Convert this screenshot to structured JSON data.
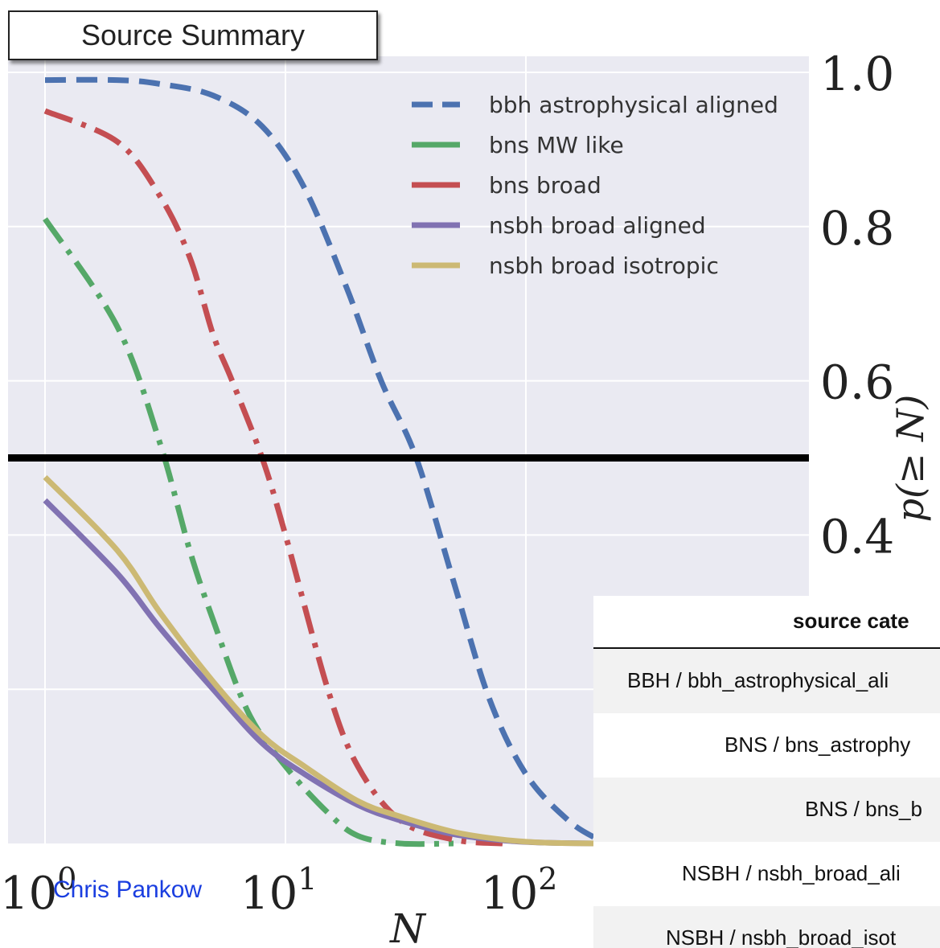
{
  "title": "Source Summary",
  "author": "Chris Pankow",
  "chart_data": {
    "type": "line",
    "xlabel": "N",
    "ylabel": "p(≥ N)",
    "xscale": "log",
    "xlim": [
      1,
      300
    ],
    "ylim": [
      0.0,
      1.0
    ],
    "x_tick_labels": [
      {
        "base": "10",
        "exp": "0",
        "value": 1
      },
      {
        "base": "10",
        "exp": "1",
        "value": 10
      },
      {
        "base": "10",
        "exp": "2",
        "value": 100
      }
    ],
    "y_tick_labels": [
      "1.0",
      "0.8",
      "0.6",
      "0.4"
    ],
    "y_tick_values": [
      1.0,
      0.8,
      0.6,
      0.4
    ],
    "grid": true,
    "legend_position": "top-right",
    "threshold_line": 0.5,
    "series": [
      {
        "name": "bbh astrophysical aligned",
        "color": "#4c72b0",
        "style": "dashed",
        "x": [
          1,
          2,
          3,
          5,
          8,
          12,
          18,
          25,
          35,
          50,
          70,
          100,
          150,
          200
        ],
        "y": [
          0.99,
          0.99,
          0.985,
          0.97,
          0.93,
          0.85,
          0.72,
          0.6,
          0.5,
          0.34,
          0.19,
          0.09,
          0.03,
          0.005
        ]
      },
      {
        "name": "bns MW like",
        "color": "#55a868",
        "style": "dashdot",
        "x": [
          1,
          2,
          3,
          4,
          5,
          7,
          10,
          15,
          20,
          30,
          50
        ],
        "y": [
          0.81,
          0.67,
          0.52,
          0.38,
          0.29,
          0.17,
          0.1,
          0.04,
          0.01,
          0.0,
          0.0
        ]
      },
      {
        "name": "bns broad",
        "color": "#c44e52",
        "style": "dashdot",
        "x": [
          1,
          2,
          3,
          4,
          5,
          6,
          8,
          10,
          15,
          20,
          30,
          50,
          80
        ],
        "y": [
          0.95,
          0.91,
          0.84,
          0.76,
          0.66,
          0.6,
          0.5,
          0.4,
          0.2,
          0.1,
          0.03,
          0.005,
          0.0
        ]
      },
      {
        "name": "nsbh broad aligned",
        "color": "#8172b2",
        "style": "solid",
        "x": [
          1,
          2,
          3,
          5,
          8,
          12,
          20,
          30,
          50,
          80,
          120,
          200
        ],
        "y": [
          0.445,
          0.35,
          0.28,
          0.2,
          0.13,
          0.09,
          0.05,
          0.03,
          0.012,
          0.004,
          0.001,
          0.0
        ]
      },
      {
        "name": "nsbh broad isotropic",
        "color": "#ccb974",
        "style": "solid",
        "x": [
          1,
          2,
          3,
          5,
          8,
          12,
          20,
          30,
          50,
          80,
          120,
          200
        ],
        "y": [
          0.475,
          0.38,
          0.3,
          0.21,
          0.14,
          0.1,
          0.055,
          0.035,
          0.015,
          0.005,
          0.001,
          0.0
        ]
      }
    ]
  },
  "table": {
    "header": "source cate",
    "rows": [
      "BBH / bbh_astrophysical_ali",
      "BNS / bns_astrophy",
      "BNS / bns_b",
      "NSBH / nsbh_broad_ali",
      "NSBH / nsbh_broad_isot"
    ]
  }
}
